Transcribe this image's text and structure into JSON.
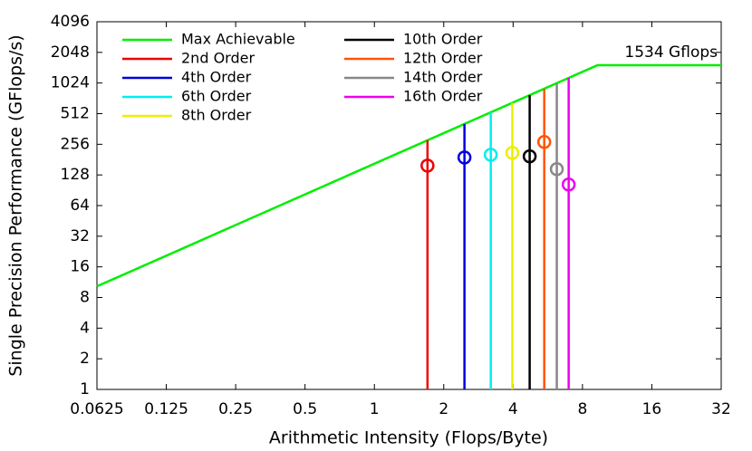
{
  "chart_data": {
    "type": "line",
    "xlabel": "Arithmetic Intensity (Flops/Byte)",
    "ylabel": "Single Precision Performance (GFlops/s)",
    "annotation": "1534 Gflops",
    "log_x": true,
    "log_y": true,
    "grid": false,
    "legend": "upper left",
    "xlim": [
      0.0625,
      32
    ],
    "xticks": [
      0.0625,
      0.125,
      0.25,
      0.5,
      1,
      2,
      4,
      8,
      16,
      32
    ],
    "ylim": [
      1,
      4096
    ],
    "yticks": [
      1,
      2,
      4,
      8,
      16,
      32,
      64,
      128,
      256,
      512,
      1024,
      2048,
      4096
    ],
    "series": [
      {
        "name": "Max Achievable",
        "color": "#00ee00",
        "x": [
          0.0625,
          9.3,
          32
        ],
        "values": [
          10.3,
          1534,
          1534
        ]
      },
      {
        "name": "2nd Order",
        "color": "#ee0000",
        "x": [
          1.7
        ],
        "values": [
          158
        ]
      },
      {
        "name": "4th Order",
        "color": "#0000dd",
        "x": [
          2.46
        ],
        "values": [
          190
        ]
      },
      {
        "name": "6th Order",
        "color": "#00eeee",
        "x": [
          3.2
        ],
        "values": [
          202
        ]
      },
      {
        "name": "8th Order",
        "color": "#eeee00",
        "x": [
          3.97
        ],
        "values": [
          211
        ]
      },
      {
        "name": "10th Order",
        "color": "#000000",
        "x": [
          4.72
        ],
        "values": [
          195
        ]
      },
      {
        "name": "12th Order",
        "color": "#ff5500",
        "x": [
          5.46
        ],
        "values": [
          270
        ]
      },
      {
        "name": "14th Order",
        "color": "#888888",
        "x": [
          6.19
        ],
        "values": [
          146
        ]
      },
      {
        "name": "16th Order",
        "color": "#ee00ee",
        "x": [
          6.97
        ],
        "values": [
          103
        ]
      }
    ]
  }
}
